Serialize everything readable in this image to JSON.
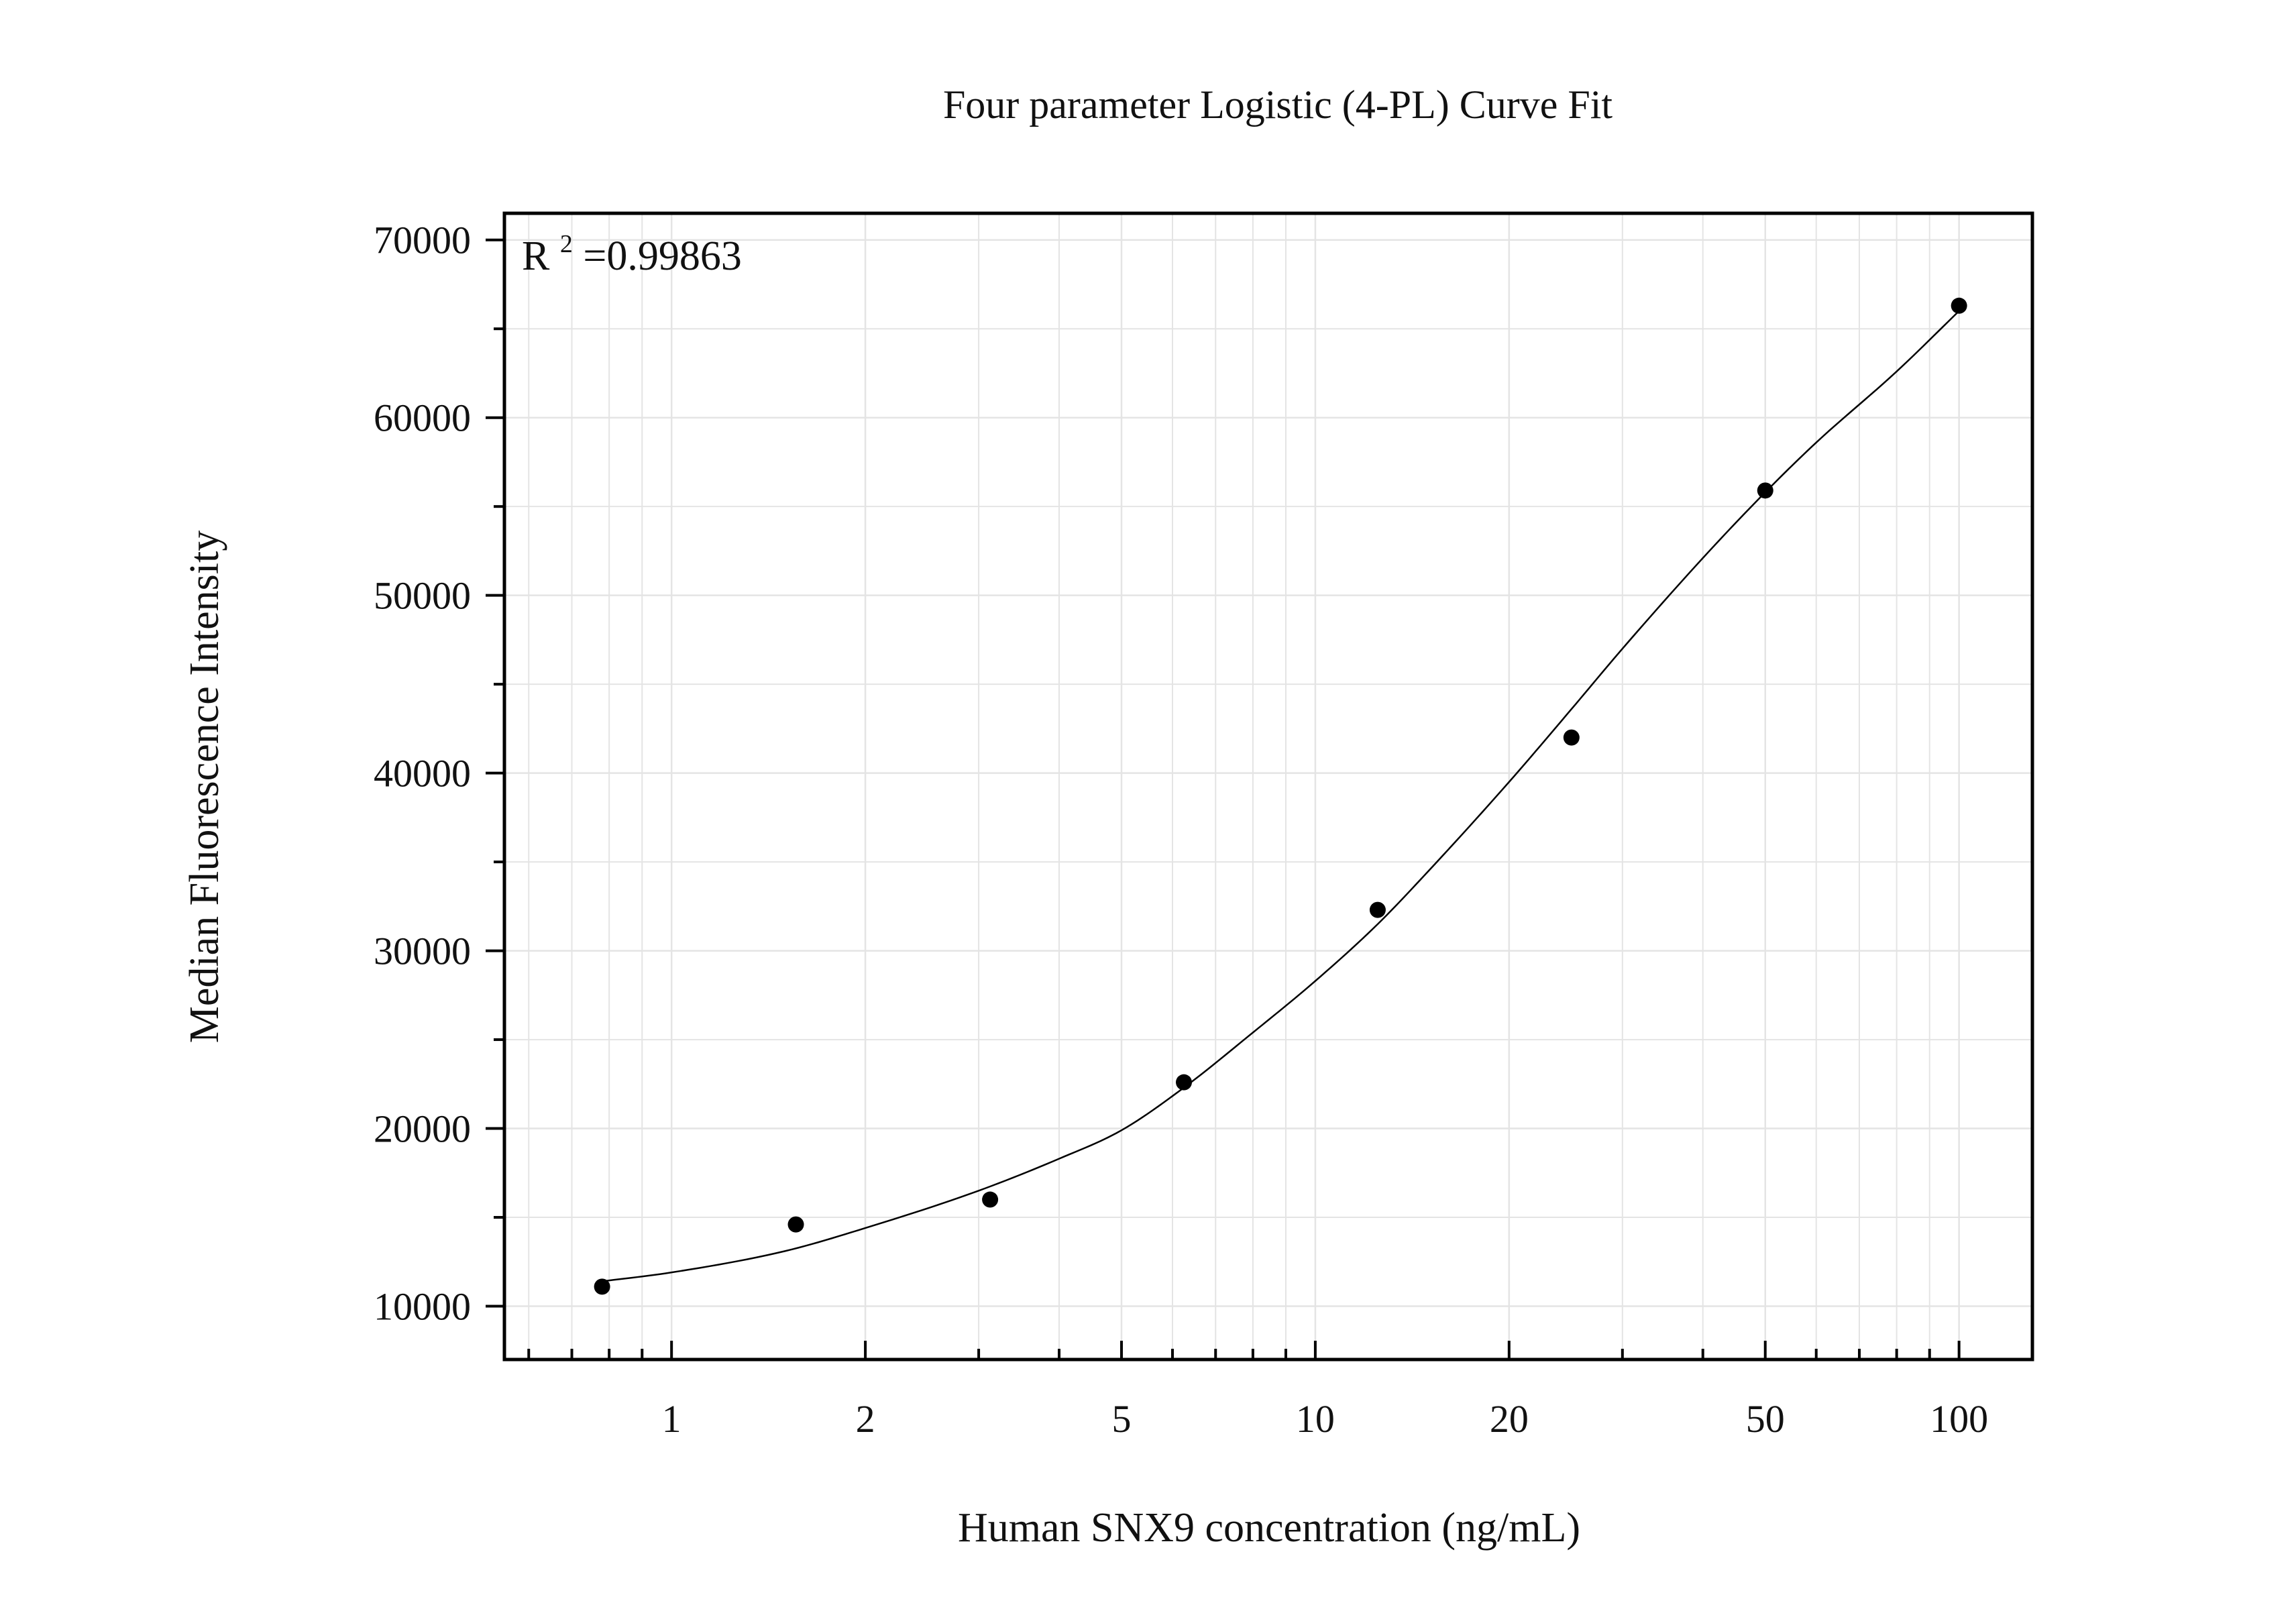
{
  "chart_data": {
    "type": "scatter",
    "title": "Four parameter Logistic (4-PL) Curve Fit",
    "xlabel": "Human SNX9 concentration (ng/mL)",
    "ylabel": "Median Fluorescence Intensity",
    "x_scale": "log",
    "xlim": [
      0.55,
      130
    ],
    "ylim": [
      7000,
      71500
    ],
    "grid": true,
    "x_ticks": [
      {
        "value": 1,
        "label": "1"
      },
      {
        "value": 2,
        "label": "2"
      },
      {
        "value": 5,
        "label": "5"
      },
      {
        "value": 10,
        "label": "10"
      },
      {
        "value": 20,
        "label": "20"
      },
      {
        "value": 50,
        "label": "50"
      },
      {
        "value": 100,
        "label": "100"
      }
    ],
    "y_ticks": [
      {
        "value": 10000,
        "label": "10000"
      },
      {
        "value": 20000,
        "label": "20000"
      },
      {
        "value": 30000,
        "label": "30000"
      },
      {
        "value": 40000,
        "label": "40000"
      },
      {
        "value": 50000,
        "label": "50000"
      },
      {
        "value": 60000,
        "label": "60000"
      },
      {
        "value": 70000,
        "label": "70000"
      }
    ],
    "annotation": {
      "base": "R",
      "superscript": "2",
      "text": "=0.99863"
    },
    "points": {
      "x": [
        0.78,
        1.56,
        3.125,
        6.25,
        12.5,
        25,
        50,
        100
      ],
      "y": [
        11100,
        14600,
        16000,
        22600,
        32300,
        42000,
        55900,
        66300
      ]
    },
    "fit_curve": {
      "model": "4-PL",
      "x": [
        0.78,
        1,
        1.5,
        2,
        3,
        4,
        5,
        6.25,
        8,
        10,
        12.5,
        15,
        20,
        25,
        30,
        40,
        50,
        60,
        80,
        100
      ],
      "y": [
        11400,
        11900,
        13100,
        14400,
        16500,
        18300,
        19900,
        22300,
        25400,
        28300,
        31500,
        34500,
        39500,
        43600,
        47000,
        52100,
        55800,
        58600,
        62600,
        66000
      ]
    },
    "colors": {
      "marker": "#000000",
      "line": "#000000",
      "grid": "#e4e4e4",
      "frame": "#000000"
    }
  }
}
